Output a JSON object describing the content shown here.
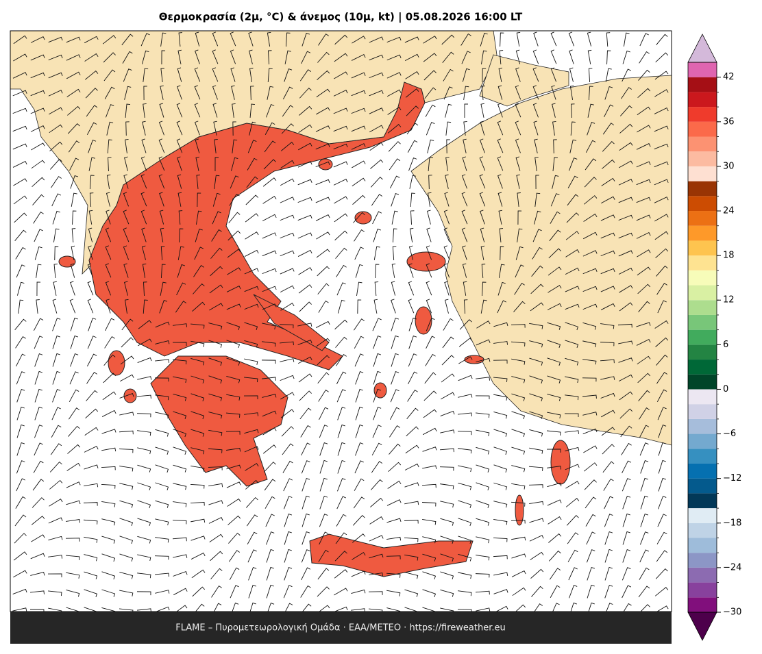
{
  "title": "Θερμοκρασία (2μ, °C) & άνεμος (10μ, kt)  |  05.08.2026 16:00 LT",
  "footer": "FLAME – Πυρομετεωρολογική Ομάδα · ΕΑΑ/METEO · https://fireweather.eu",
  "colorbar": {
    "lim": [
      -30,
      44
    ],
    "ticks": [
      {
        "value": -30,
        "label": "−30"
      },
      {
        "value": -24,
        "label": "−24"
      },
      {
        "value": -18,
        "label": "−18"
      },
      {
        "value": -12,
        "label": "−12"
      },
      {
        "value": -6,
        "label": "−6"
      },
      0,
      6,
      12,
      18,
      24,
      30,
      36,
      42
    ],
    "colors": [
      "#810f7c",
      "#88419d",
      "#8c6bb1",
      "#8c96c6",
      "#9ebcda",
      "#bfd3e6",
      "#e0ecf4",
      "#023858",
      "#045a8d",
      "#0570b0",
      "#3690c0",
      "#74a9cf",
      "#a6bddb",
      "#d0d1e6",
      "#ece7f2",
      "#004529",
      "#006837",
      "#238443",
      "#41ab5d",
      "#78c679",
      "#addd8e",
      "#d9f0a3",
      "#f7fcb9",
      "#fee391",
      "#fec44f",
      "#fe9929",
      "#ec7014",
      "#cc4c02",
      "#993404",
      "#fee0d2",
      "#fcbba1",
      "#fc9272",
      "#fb6a4a",
      "#ef3b2c",
      "#cb181d",
      "#a50f15",
      "#df65b0"
    ],
    "under_color": "#4d004b",
    "over_color": "#d4b9da"
  }
}
